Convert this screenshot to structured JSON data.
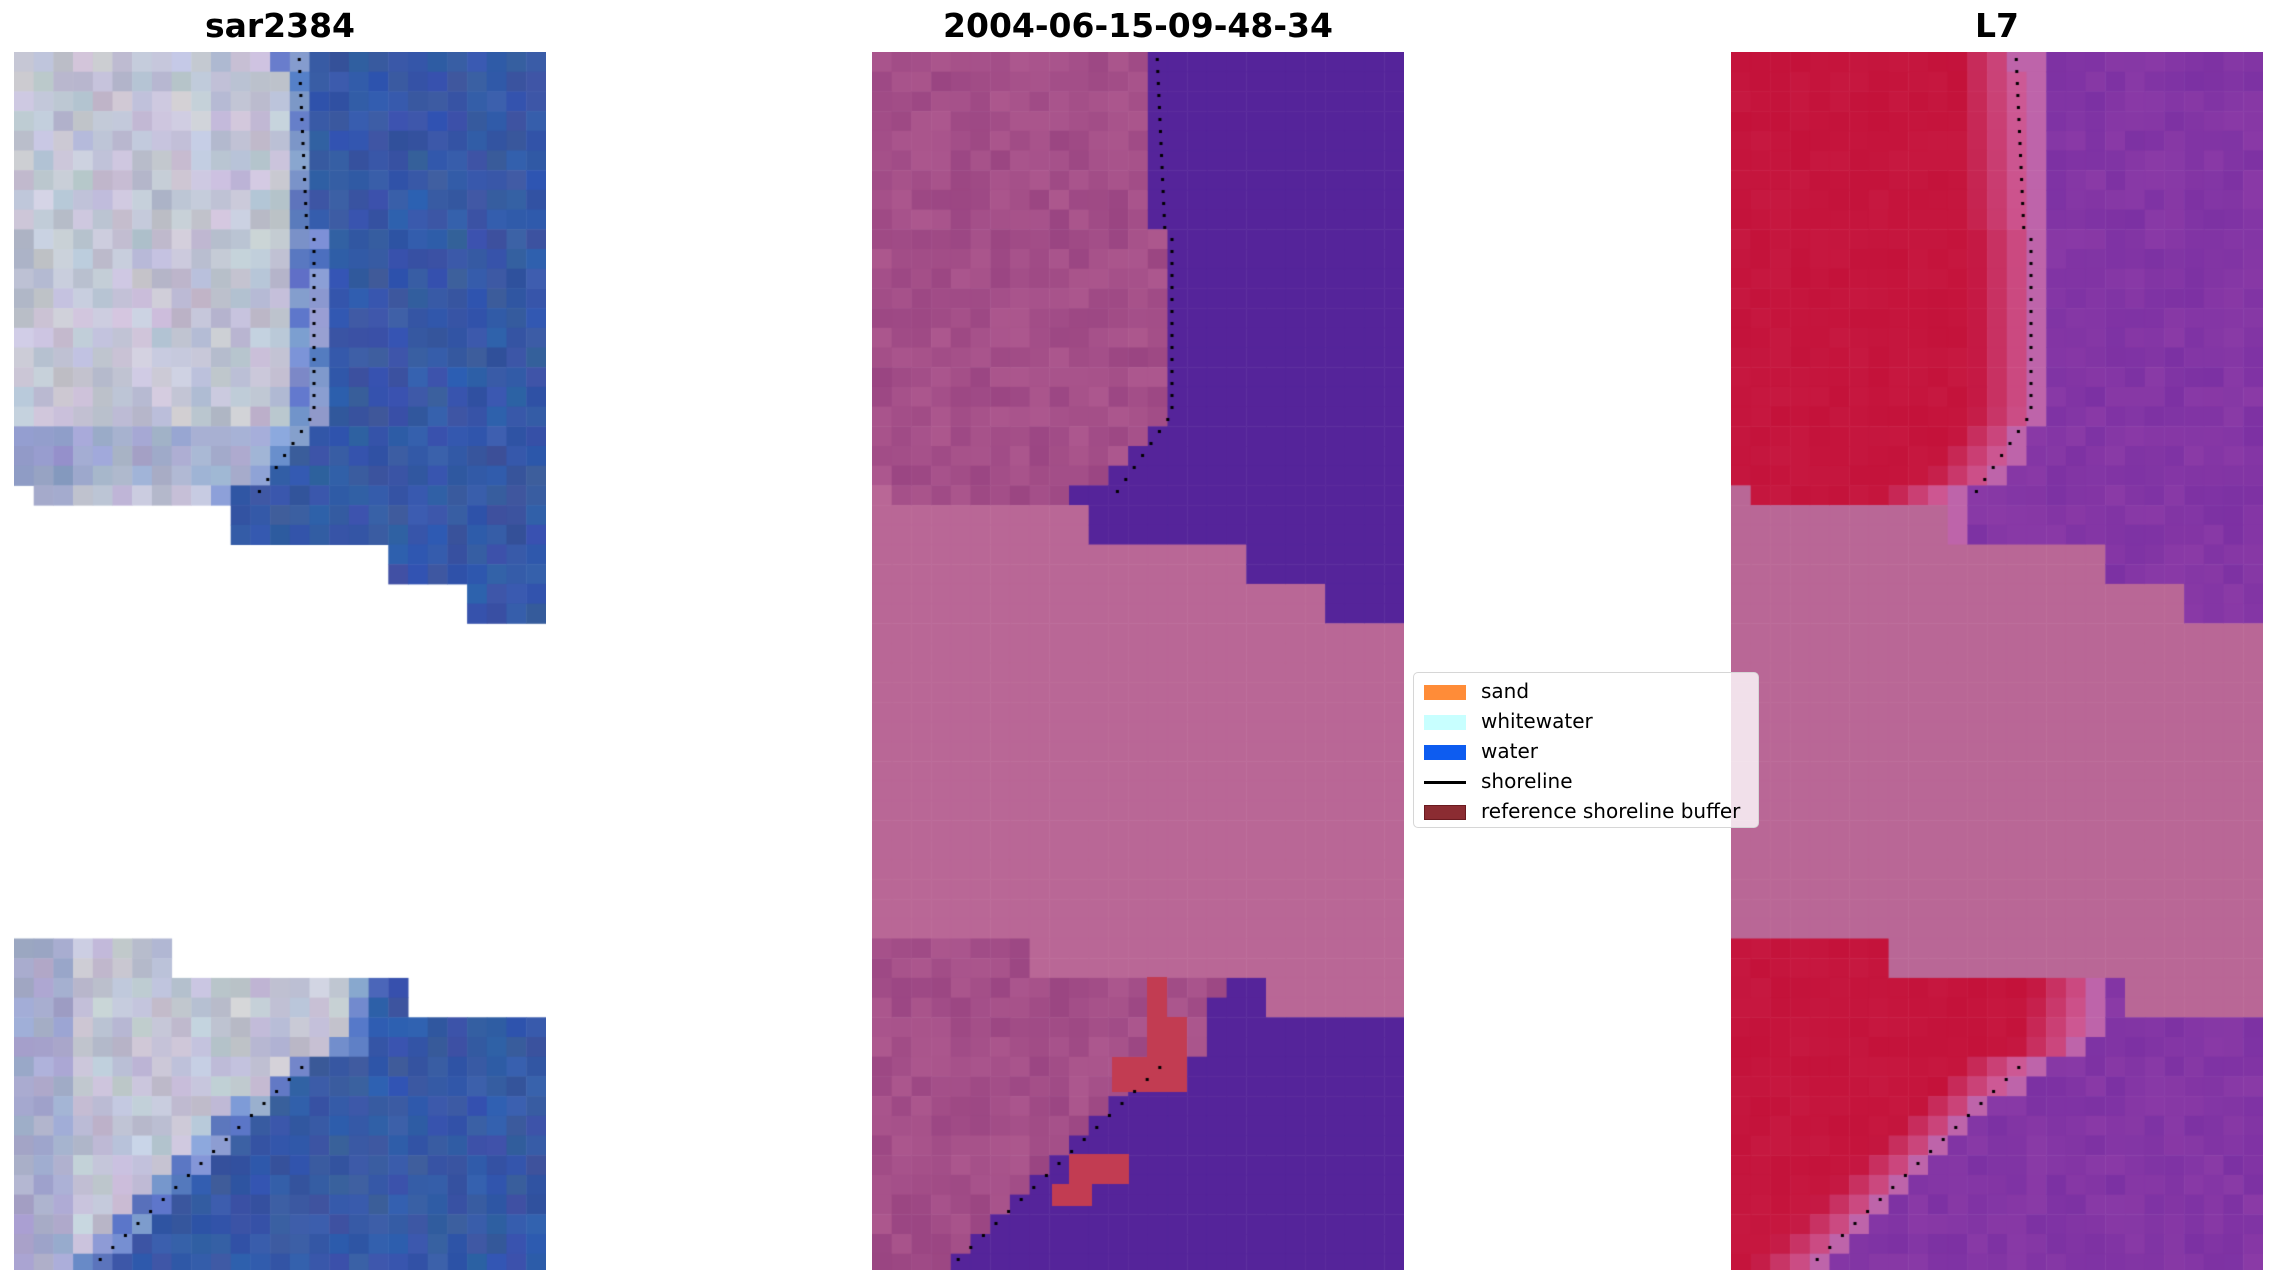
{
  "panels": [
    {
      "title": "sar2384",
      "image": "rgb-composite"
    },
    {
      "title": "2004-06-15-09-48-34",
      "image": "classified-overlay"
    },
    {
      "title": "L7",
      "image": "index-map"
    }
  ],
  "legend": {
    "items": [
      {
        "label": "sand",
        "type": "patch",
        "color": "#ff8c38"
      },
      {
        "label": "whitewater",
        "type": "patch",
        "color": "#c8ffff"
      },
      {
        "label": "water",
        "type": "patch",
        "color": "#0d5cf0"
      },
      {
        "label": "shoreline",
        "type": "line",
        "color": "#000000"
      },
      {
        "label": "reference shoreline buffer",
        "type": "patch",
        "color": "#8b2c32"
      }
    ]
  },
  "colors": {
    "cloud_mask": "#b96796",
    "water_purple": "#55249a",
    "land_magenta": "#9a4582",
    "buffer_red": "#c23c52",
    "index_red": "#c4123a",
    "index_purple": "#8a3aa6",
    "rgb_land": "#b4b8ca",
    "rgb_water": "#3858a0"
  }
}
